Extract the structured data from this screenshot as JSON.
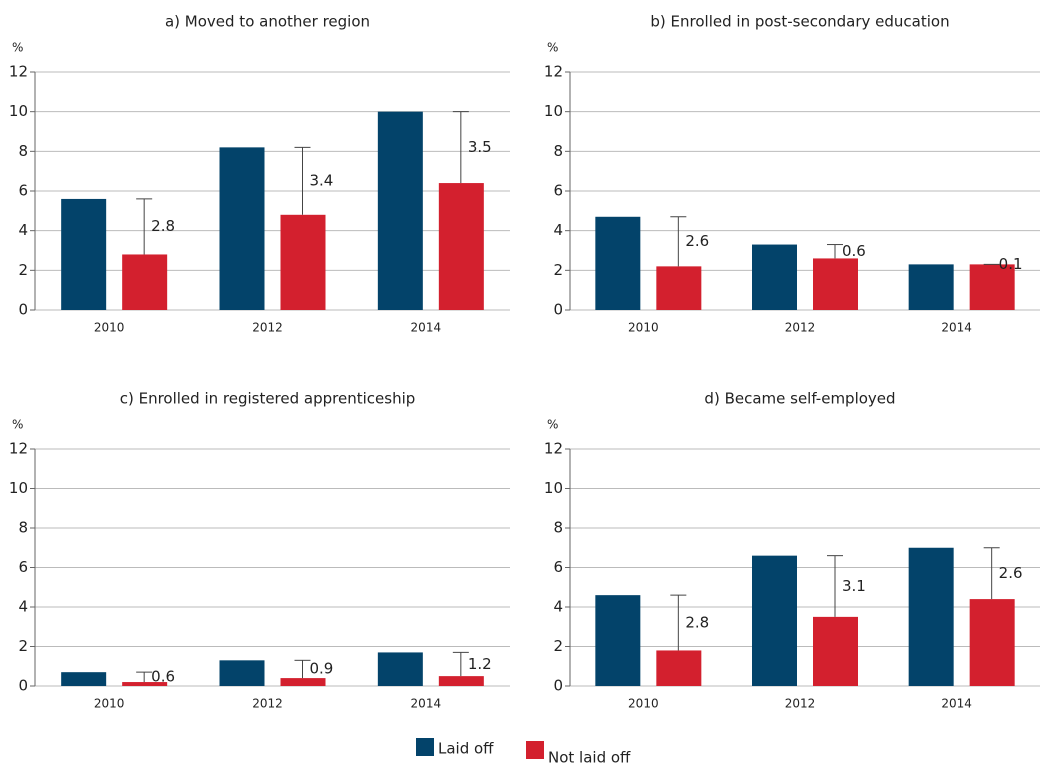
{
  "chart_data": [
    {
      "type": "bar",
      "title": "a) Moved to another region",
      "y_unit": "%",
      "categories": [
        "2010",
        "2012",
        "2014"
      ],
      "series": [
        {
          "values": [
            5.6,
            8.2,
            10.0
          ]
        },
        {
          "values": [
            2.8,
            4.8,
            6.4
          ]
        }
      ],
      "differences": [
        2.8,
        3.4,
        3.5
      ],
      "ylim": [
        0,
        12
      ],
      "yticks": [
        0,
        2,
        4,
        6,
        8,
        10,
        12
      ],
      "grid": true
    },
    {
      "type": "bar",
      "title": "b) Enrolled in post-secondary education",
      "y_unit": "%",
      "categories": [
        "2010",
        "2012",
        "2014"
      ],
      "series": [
        {
          "values": [
            4.7,
            3.3,
            2.3
          ]
        },
        {
          "values": [
            2.2,
            2.6,
            2.3
          ]
        }
      ],
      "differences": [
        2.6,
        0.6,
        0.1
      ],
      "ylim": [
        0,
        12
      ],
      "yticks": [
        0,
        2,
        4,
        6,
        8,
        10,
        12
      ],
      "grid": true
    },
    {
      "type": "bar",
      "title": "c) Enrolled in registered apprenticeship",
      "y_unit": "%",
      "categories": [
        "2010",
        "2012",
        "2014"
      ],
      "series": [
        {
          "values": [
            0.7,
            1.3,
            1.7
          ]
        },
        {
          "values": [
            0.2,
            0.4,
            0.5
          ]
        }
      ],
      "differences": [
        0.6,
        0.9,
        1.2
      ],
      "ylim": [
        0,
        12
      ],
      "yticks": [
        0,
        2,
        4,
        6,
        8,
        10,
        12
      ],
      "grid": true
    },
    {
      "type": "bar",
      "title": "d) Became self-employed",
      "y_unit": "%",
      "categories": [
        "2010",
        "2012",
        "2014"
      ],
      "series": [
        {
          "values": [
            4.6,
            6.6,
            7.0
          ]
        },
        {
          "values": [
            1.8,
            3.5,
            4.4
          ]
        }
      ],
      "differences": [
        2.8,
        3.1,
        2.6
      ],
      "ylim": [
        0,
        12
      ],
      "yticks": [
        0,
        2,
        4,
        6,
        8,
        10,
        12
      ],
      "grid": true
    }
  ],
  "legend": [
    {
      "name": "Laid off",
      "color": "#03436a"
    },
    {
      "name": "Not laid off",
      "color": "#d3202e"
    }
  ]
}
